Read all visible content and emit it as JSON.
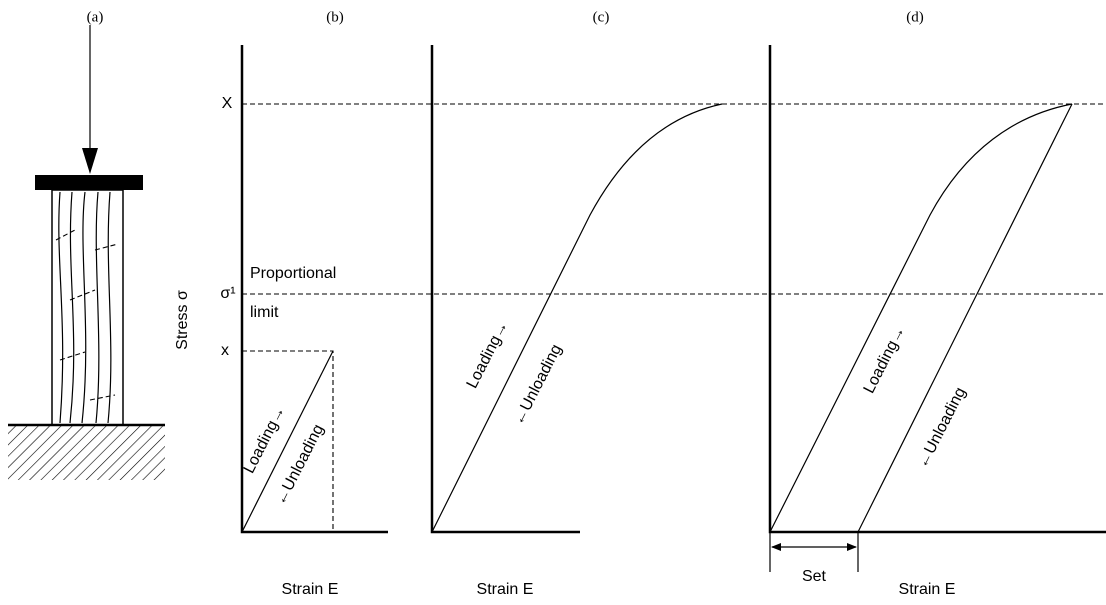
{
  "panels": [
    {
      "label": "(a)"
    },
    {
      "label": "(b)",
      "x_axis_label": "Strain E",
      "loading": "Loading→",
      "unloading": "←Unloading"
    },
    {
      "label": "(c)",
      "x_axis_label": "Strain E",
      "loading": "Loading→",
      "unloading": "←Unloading"
    },
    {
      "label": "(d)",
      "x_axis_label": "Strain E",
      "loading": "Loading→",
      "unloading": "←Unloading",
      "set": "Set"
    }
  ],
  "y_axis": {
    "title": "Stress σ",
    "max_label": "X",
    "limit_label": "σ¹",
    "small_label": "x",
    "limit_text": [
      "Proportional",
      "limit"
    ]
  }
}
